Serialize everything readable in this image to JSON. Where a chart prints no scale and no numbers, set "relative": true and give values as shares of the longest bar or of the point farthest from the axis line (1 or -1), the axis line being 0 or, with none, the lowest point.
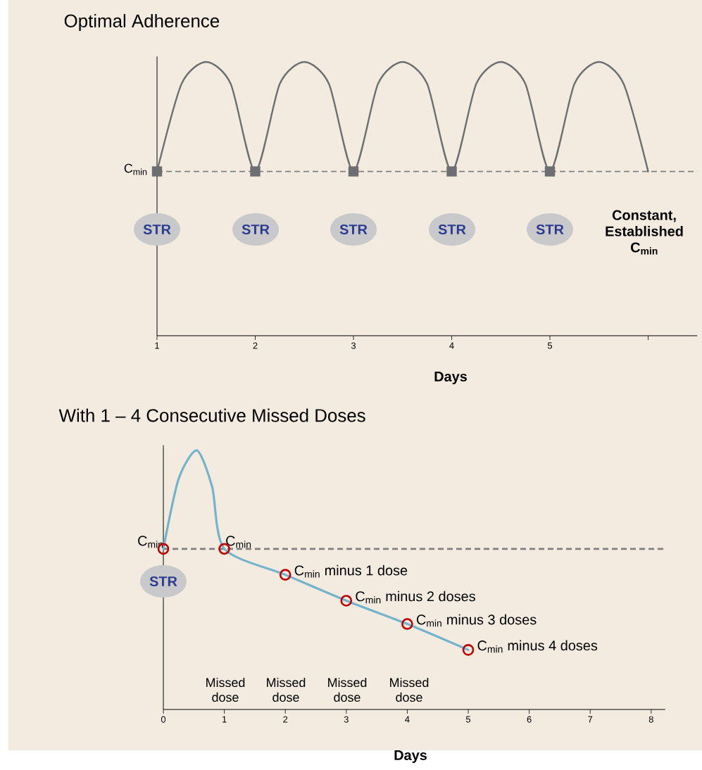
{
  "chart_data": [
    {
      "type": "line",
      "title": "Optimal Adherence",
      "xlabel": "Days",
      "relative": true,
      "xlim": [
        1,
        6.5
      ],
      "xticks": [
        1,
        2,
        3,
        4,
        5,
        {
          "value": 6,
          "label": null
        }
      ],
      "series": [
        {
          "color": "#6d6e71",
          "x": [
            1,
            1.25,
            1.5,
            1.75,
            2,
            2.25,
            2.5,
            2.75,
            3,
            3.25,
            3.5,
            3.75,
            4,
            4.25,
            4.5,
            4.75,
            5,
            5.25,
            5.5,
            5.75,
            6
          ],
          "values": [
            0.6,
            0.92,
            1,
            0.92,
            0.6,
            0.92,
            1,
            0.92,
            0.6,
            0.92,
            1,
            0.92,
            0.6,
            0.92,
            1,
            0.92,
            0.6,
            0.92,
            1,
            0.92,
            0.6
          ]
        },
        {
          "type": "scatter",
          "marker": "square",
          "color": "#6d6e71",
          "x": [
            1,
            2,
            3,
            4,
            5
          ],
          "values": [
            0.6,
            0.6,
            0.6,
            0.6,
            0.6
          ]
        }
      ],
      "ref_lines": [
        {
          "axis": "y",
          "value": 0.6,
          "color": "#808080",
          "line_style": "dashed"
        }
      ],
      "annotations": [
        {
          "text": "C$_{min}$",
          "x": 1,
          "y": 0.6
        },
        "STR",
        "STR",
        "STR",
        "STR",
        "STR",
        "Constant, Established C$_{min}$"
      ]
    },
    {
      "type": "line",
      "title": "With 1 – 4 Consecutive Missed Doses",
      "xlabel": "Days",
      "relative": true,
      "xlim": [
        0,
        8.23
      ],
      "xticks": [
        0,
        1,
        2,
        3,
        4,
        5,
        6,
        7,
        8
      ],
      "series": [
        {
          "color": "#74b3cc",
          "x": [
            0,
            0.25,
            0.55,
            0.8,
            1,
            2,
            3,
            4,
            5
          ],
          "values": [
            0.62,
            0.89,
            1,
            0.86,
            0.62,
            0.52,
            0.42,
            0.33,
            0.23
          ]
        },
        {
          "type": "scatter",
          "marker": "circle",
          "color": "#c00000",
          "x": [
            0,
            1,
            2,
            3,
            4,
            5
          ],
          "values": [
            0.62,
            0.62,
            0.52,
            0.42,
            0.33,
            0.23
          ]
        }
      ],
      "ref_lines": [
        {
          "axis": "y",
          "value": 0.62,
          "color": "#808080",
          "line_style": "dashed"
        }
      ],
      "annotations": [
        {
          "text": "C$_{min}$",
          "x": 0,
          "y": 0.62
        },
        {
          "text": "C$_{min}$",
          "x": 1,
          "y": 0.62
        },
        {
          "text": "C$_{min}$ minus 1 dose",
          "x": 2,
          "y": 0.52
        },
        {
          "text": "C$_{min}$ minus 2 doses",
          "x": 3,
          "y": 0.42
        },
        {
          "text": "C$_{min}$ minus 3 doses",
          "x": 4,
          "y": 0.33
        },
        {
          "text": "C$_{min}$ minus 4 doses",
          "x": 5,
          "y": 0.23
        },
        "STR",
        "Missed dose",
        "Missed dose",
        "Missed dose",
        "Missed dose"
      ]
    }
  ]
}
